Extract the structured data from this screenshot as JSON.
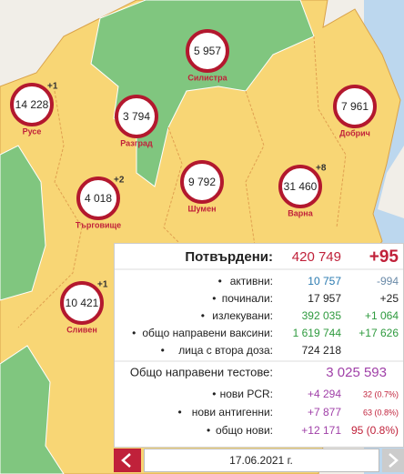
{
  "regions": [
    {
      "name": "Русе",
      "value": "14 228",
      "change": "+1"
    },
    {
      "name": "Силистра",
      "value": "5 957"
    },
    {
      "name": "Разград",
      "value": "3 794"
    },
    {
      "name": "Добрич",
      "value": "7 961"
    },
    {
      "name": "Търговище",
      "value": "4 018",
      "change": "+2"
    },
    {
      "name": "Шумен",
      "value": "9 792"
    },
    {
      "name": "Варна",
      "value": "31 460",
      "change": "+8"
    },
    {
      "name": "Сливен",
      "value": "10 421",
      "change": "+1"
    }
  ],
  "summary": {
    "confirmed": {
      "label": "Потвърдени:",
      "value": "420 749",
      "change": "+95"
    },
    "rows": [
      {
        "label": "активни:",
        "value": "10 757",
        "change": "-994"
      },
      {
        "label": "починали:",
        "value": "17 957",
        "change": "+25"
      },
      {
        "label": "излекувани:",
        "value": "392 035",
        "change": "+1 064"
      },
      {
        "label": "общо направени ваксини:",
        "value": "1 619 744",
        "change": "+17 626"
      },
      {
        "label": "лица с втора доза:",
        "value": "724 218"
      }
    ],
    "tests": {
      "label": "Общо направени тестове:",
      "value": "3 025 593",
      "rows": [
        {
          "label": "нови PCR:",
          "value": "+4 294",
          "positive": "32 (0.7%)"
        },
        {
          "label": "нови антигенни:",
          "value": "+7 877",
          "positive": "63 (0.8%)"
        },
        {
          "label": "общо нови:",
          "value": "+12 171",
          "positive": "95 (0.8%)"
        }
      ]
    }
  },
  "date": "17.06.2021 г."
}
